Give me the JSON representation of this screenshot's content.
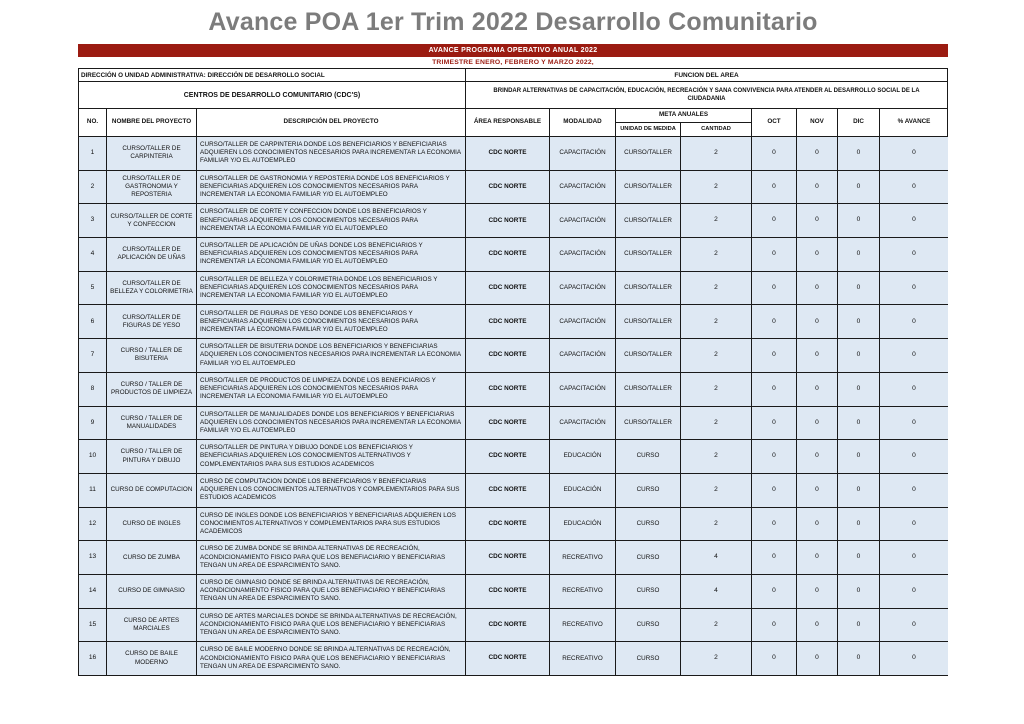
{
  "title": "Avance POA 1er Trim 2022 Desarrollo Comunitario",
  "banner": {
    "line1": "AVANCE PROGRAMA OPERATIVO ANUAL 2022",
    "line2": "TRIMESTRE ENERO, FEBRERO Y MARZO 2022,"
  },
  "info": {
    "direccion": "DIRECCIÓN O UNIDAD ADMINISTRATIVA: DIRECCIÓN DE DESARROLLO SOCIAL",
    "funcion_label": "FUNCION DEL AREA",
    "centros": "CENTROS DE DESARROLLO COMUNITARIO (CDC'S)",
    "funcion_text": "BRINDAR ALTERNATIVAS DE CAPACITACIÓN, EDUCACIÓN, RECREACIÓN Y SANA CONVIVENCIA PARA ATENDER AL DESARROLLO SOCIAL DE LA CIUDADANIA"
  },
  "table": {
    "headers": {
      "no": "NO.",
      "nombre": "NOMBRE DEL PROYECTO",
      "descripcion": "DESCRIPCIÓN DEL PROYECTO",
      "area": "ÁREA RESPONSABLE",
      "modalidad": "MODALIDAD",
      "meta_group": "META ANUALES",
      "unidad": "UNIDAD DE MEDIDA",
      "cantidad": "CANTIDAD",
      "oct": "OCT",
      "nov": "NOV",
      "dic": "DIC",
      "avance": "% AVANCE"
    },
    "column_keys": [
      "no",
      "nombre",
      "descripcion",
      "area",
      "modalidad",
      "unidad",
      "cantidad",
      "oct",
      "nov",
      "dic",
      "avance"
    ],
    "rows": [
      {
        "no": "1",
        "nombre": "CURSO/TALLER DE CARPINTERIA",
        "descripcion": "CURSO/TALLER DE CARPINTERIA DONDE LOS BENEFICIARIOS Y BENEFICIARIAS ADQUIEREN LOS CONOCIMIENTOS NECESARIOS PARA INCREMENTAR LA ECONOMIA FAMILIAR Y/O EL AUTOEMPLEO",
        "area": "CDC NORTE",
        "modalidad": "CAPACITACIÓN",
        "unidad": "CURSO/TALLER",
        "cantidad": "2",
        "oct": "0",
        "nov": "0",
        "dic": "0",
        "avance": "0"
      },
      {
        "no": "2",
        "nombre": "CURSO/TALLER DE GASTRONOMIA Y REPOSTERIA",
        "descripcion": "CURSO/TALLER DE GASTRONOMIA Y REPOSTERIA DONDE LOS BENEFICIARIOS Y BENEFICIARIAS ADQUIEREN LOS CONOCIMIENTOS NECESARIOS PARA INCREMENTAR LA ECONOMIA FAMILIAR Y/O EL AUTOEMPLEO",
        "area": "CDC NORTE",
        "modalidad": "CAPACITACIÓN",
        "unidad": "CURSO/TALLER",
        "cantidad": "2",
        "oct": "0",
        "nov": "0",
        "dic": "0",
        "avance": "0"
      },
      {
        "no": "3",
        "nombre": "CURSO/TALLER DE CORTE Y CONFECCION",
        "descripcion": "CURSO/TALLER DE CORTE Y CONFECCION DONDE LOS BENEFICIARIOS Y BENEFICIARIAS ADQUIEREN LOS CONOCIMIENTOS NECESARIOS PARA INCREMENTAR LA ECONOMIA FAMILIAR Y/O EL AUTOEMPLEO",
        "area": "CDC NORTE",
        "modalidad": "CAPACITACIÓN",
        "unidad": "CURSO/TALLER",
        "cantidad": "2",
        "oct": "0",
        "nov": "0",
        "dic": "0",
        "avance": "0"
      },
      {
        "no": "4",
        "nombre": "CURSO/TALLER DE APLICACIÓN DE UÑAS",
        "descripcion": "CURSO/TALLER DE APLICACIÓN DE UÑAS DONDE LOS BENEFICIARIOS Y BENEFICIARIAS ADQUIEREN LOS CONOCIMIENTOS NECESARIOS PARA INCREMENTAR LA ECONOMIA FAMILIAR Y/O EL AUTOEMPLEO",
        "area": "CDC NORTE",
        "modalidad": "CAPACITACIÓN",
        "unidad": "CURSO/TALLER",
        "cantidad": "2",
        "oct": "0",
        "nov": "0",
        "dic": "0",
        "avance": "0"
      },
      {
        "no": "5",
        "nombre": "CURSO/TALLER DE BELLEZA Y COLORIMETRIA",
        "descripcion": "CURSO/TALLER DE BELLEZA Y COLORIMETRIA DONDE LOS BENEFICIARIOS Y BENEFICIARIAS ADQUIEREN LOS CONOCIMIENTOS NECESARIOS PARA INCREMENTAR LA ECONOMIA FAMILIAR Y/O EL AUTOEMPLEO",
        "area": "CDC NORTE",
        "modalidad": "CAPACITACIÓN",
        "unidad": "CURSO/TALLER",
        "cantidad": "2",
        "oct": "0",
        "nov": "0",
        "dic": "0",
        "avance": "0"
      },
      {
        "no": "6",
        "nombre": "CURSO/TALLER DE FIGURAS DE YESO",
        "descripcion": "CURSO/TALLER DE FIGURAS DE YESO DONDE LOS BENEFICIARIOS Y BENEFICIARIAS ADQUIEREN LOS CONOCIMIENTOS NECESARIOS PARA INCREMENTAR LA ECONOMIA FAMILIAR Y/O EL AUTOEMPLEO",
        "area": "CDC NORTE",
        "modalidad": "CAPACITACIÓN",
        "unidad": "CURSO/TALLER",
        "cantidad": "2",
        "oct": "0",
        "nov": "0",
        "dic": "0",
        "avance": "0"
      },
      {
        "no": "7",
        "nombre": "CURSO / TALLER DE BISUTERIA",
        "descripcion": "CURSO/TALLER DE BISUTERIA DONDE LOS BENEFICIARIOS Y BENEFICIARIAS ADQUIEREN LOS CONOCIMIENTOS NECESARIOS PARA INCREMENTAR LA ECONOMIA FAMILIAR Y/O EL AUTOEMPLEO",
        "area": "CDC NORTE",
        "modalidad": "CAPACITACIÓN",
        "unidad": "CURSO/TALLER",
        "cantidad": "2",
        "oct": "0",
        "nov": "0",
        "dic": "0",
        "avance": "0"
      },
      {
        "no": "8",
        "nombre": "CURSO / TALLER DE PRODUCTOS DE LIMPIEZA",
        "descripcion": "CURSO/TALLER DE PRODUCTOS DE LIMPIEZA DONDE LOS BENEFICIARIOS Y BENEFICIARIAS ADQUIEREN LOS CONOCIMIENTOS NECESARIOS PARA INCREMENTAR LA ECONOMIA FAMILIAR Y/O EL AUTOEMPLEO",
        "area": "CDC NORTE",
        "modalidad": "CAPACITACIÓN",
        "unidad": "CURSO/TALLER",
        "cantidad": "2",
        "oct": "0",
        "nov": "0",
        "dic": "0",
        "avance": "0"
      },
      {
        "no": "9",
        "nombre": "CURSO / TALLER DE MANUALIDADES",
        "descripcion": "CURSO/TALLER DE MANUALIDADES DONDE LOS BENEFICIARIOS Y BENEFICIARIAS ADQUIEREN LOS CONOCIMIENTOS NECESARIOS PARA INCREMENTAR LA ECONOMIA FAMILIAR Y/O EL AUTOEMPLEO",
        "area": "CDC NORTE",
        "modalidad": "CAPACITACIÓN",
        "unidad": "CURSO/TALLER",
        "cantidad": "2",
        "oct": "0",
        "nov": "0",
        "dic": "0",
        "avance": "0"
      },
      {
        "no": "10",
        "nombre": "CURSO / TALLER DE PINTURA Y DIBUJO",
        "descripcion": "CURSO/TALLER DE PINTURA Y DIBUJO DONDE LOS BENEFICIARIOS Y BENEFICIARIAS ADQUIEREN LOS CONOCIMIENTOS ALTERNATIVOS Y COMPLEMENTARIOS PARA SUS ESTUDIOS ACADEMICOS",
        "area": "CDC NORTE",
        "modalidad": "EDUCACIÓN",
        "unidad": "CURSO",
        "cantidad": "2",
        "oct": "0",
        "nov": "0",
        "dic": "0",
        "avance": "0"
      },
      {
        "no": "11",
        "nombre": "CURSO DE COMPUTACION",
        "descripcion": "CURSO DE COMPUTACION DONDE LOS BENEFICIARIOS Y BENEFICIARIAS ADQUIEREN LOS CONOCIMIENTOS ALTERNATIVOS Y COMPLEMENTARIOS PARA SUS ESTUDIOS ACADEMICOS",
        "area": "CDC NORTE",
        "modalidad": "EDUCACIÓN",
        "unidad": "CURSO",
        "cantidad": "2",
        "oct": "0",
        "nov": "0",
        "dic": "0",
        "avance": "0"
      },
      {
        "no": "12",
        "nombre": "CURSO DE INGLES",
        "descripcion": "CURSO DE INGLES DONDE LOS BENEFICIARIOS Y BENEFICIARIAS ADQUIEREN LOS CONOCIMIENTOS ALTERNATIVOS Y COMPLEMENTARIOS PARA SUS ESTUDIOS ACADEMICOS",
        "area": "CDC NORTE",
        "modalidad": "EDUCACIÓN",
        "unidad": "CURSO",
        "cantidad": "2",
        "oct": "0",
        "nov": "0",
        "dic": "0",
        "avance": "0"
      },
      {
        "no": "13",
        "nombre": "CURSO DE ZUMBA",
        "descripcion": "CURSO DE ZUMBA DONDE SE BRINDA ALTERNATIVAS DE RECREACIÓN, ACONDICIONAMIENTO FISICO PARA QUE LOS BENEFIACIARIO Y BENEFICIARIAS TENGAN UN AREA DE ESPARCIMIENTO SANO.",
        "area": "CDC NORTE",
        "modalidad": "RECREATIVO",
        "unidad": "CURSO",
        "cantidad": "4",
        "oct": "0",
        "nov": "0",
        "dic": "0",
        "avance": "0"
      },
      {
        "no": "14",
        "nombre": "CURSO DE GIMNASIO",
        "descripcion": "CURSO DE GIMNASIO DONDE SE BRINDA ALTERNATIVAS DE RECREACIÓN, ACONDICIONAMIENTO FISICO PARA QUE LOS BENEFIACIARIO Y BENEFICIARIAS TENGAN UN AREA DE ESPARCIMIENTO SANO.",
        "area": "CDC NORTE",
        "modalidad": "RECREATIVO",
        "unidad": "CURSO",
        "cantidad": "4",
        "oct": "0",
        "nov": "0",
        "dic": "0",
        "avance": "0"
      },
      {
        "no": "15",
        "nombre": "CURSO DE ARTES MARCIALES",
        "descripcion": "CURSO DE ARTES MARCIALES DONDE SE BRINDA ALTERNATIVAS DE RECREACIÓN, ACONDICIONAMIENTO FISICO PARA QUE LOS BENEFIACIARIO Y BENEFICIARIAS TENGAN UN AREA DE ESPARCIMIENTO SANO.",
        "area": "CDC NORTE",
        "modalidad": "RECREATIVO",
        "unidad": "CURSO",
        "cantidad": "2",
        "oct": "0",
        "nov": "0",
        "dic": "0",
        "avance": "0"
      },
      {
        "no": "16",
        "nombre": "CURSO DE BAILE MODERNO",
        "descripcion": "CURSO DE BAILE MODERNO DONDE SE BRINDA ALTERNATIVAS DE RECREACIÓN, ACONDICIONAMIENTO FISICO PARA QUE LOS BENEFIACIARIO Y BENEFICIARIAS TENGAN UN AREA DE ESPARCIMIENTO SANO.",
        "area": "CDC NORTE",
        "modalidad": "RECREATIVO",
        "unidad": "CURSO",
        "cantidad": "2",
        "oct": "0",
        "nov": "0",
        "dic": "0",
        "avance": "0"
      }
    ]
  },
  "colors": {
    "banner_red": "#9B1B11",
    "title_gray": "#7C7C7C",
    "cell_blue": "#DEE8F3"
  }
}
